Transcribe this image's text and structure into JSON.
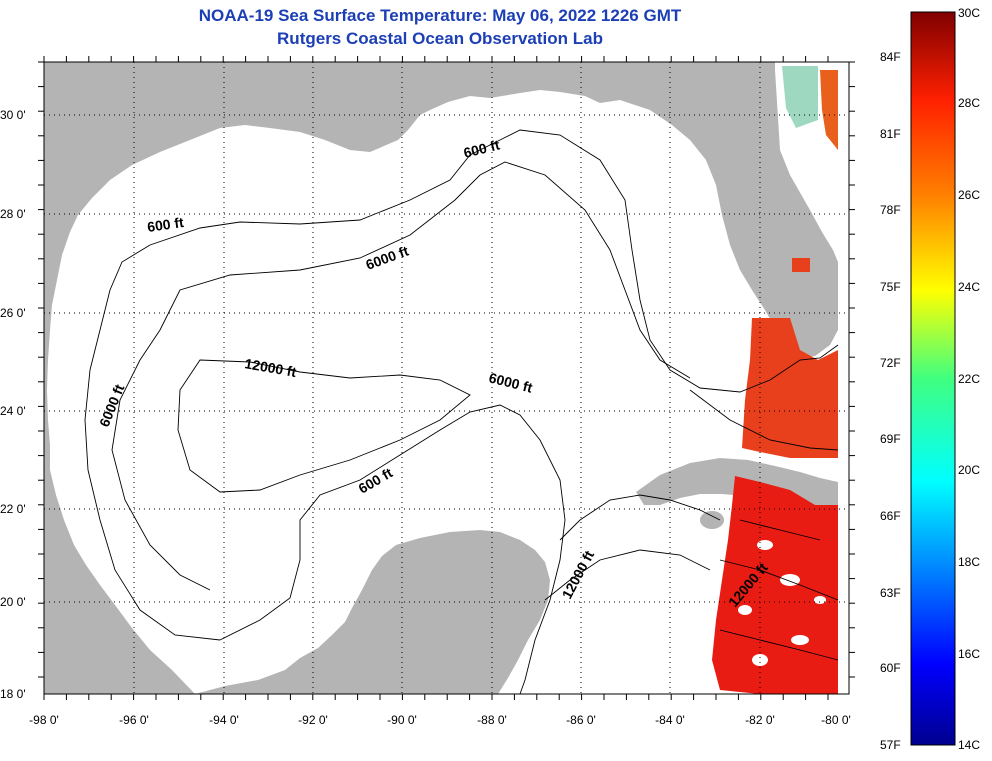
{
  "header": {
    "title_line1": "NOAA-19 Sea Surface Temperature:  May 06, 2022 1226 GMT",
    "title_line2": "Rutgers Coastal Ocean Observation Lab"
  },
  "colors": {
    "title": "#1c3fb5",
    "land": "#b4b4b4",
    "water_nodata": "#ffffff",
    "sst_warm": "#e8401c",
    "sst_hot": "#e81c12"
  },
  "map": {
    "lat_labels": [
      "30 0'",
      "28 0'",
      "26 0'",
      "24 0'",
      "22 0'",
      "20 0'",
      "18 0'"
    ],
    "lon_labels": [
      "-98 0'",
      "-96 0'",
      "-94 0'",
      "-92 0'",
      "-90 0'",
      "-88 0'",
      "-86 0'",
      "-84 0'",
      "-82 0'",
      "-80 0'"
    ],
    "contour_labels": {
      "c600_north": "600 ft",
      "c600_west": "600 ft",
      "c6000_north": "6000 ft",
      "c6000_west": "6000 ft",
      "c6000_center": "6000 ft",
      "c12000_center": "12000 ft",
      "c600_center": "600 ft",
      "c12000_yucatan": "12000 ft",
      "c12000_caribbean": "12000 ft"
    }
  },
  "colorbar": {
    "celsius_labels": [
      "30C",
      "28C",
      "26C",
      "24C",
      "22C",
      "20C",
      "18C",
      "16C",
      "14C"
    ],
    "fahrenheit_labels": [
      "84F",
      "81F",
      "78F",
      "75F",
      "72F",
      "69F",
      "66F",
      "63F",
      "60F",
      "57F"
    ]
  }
}
